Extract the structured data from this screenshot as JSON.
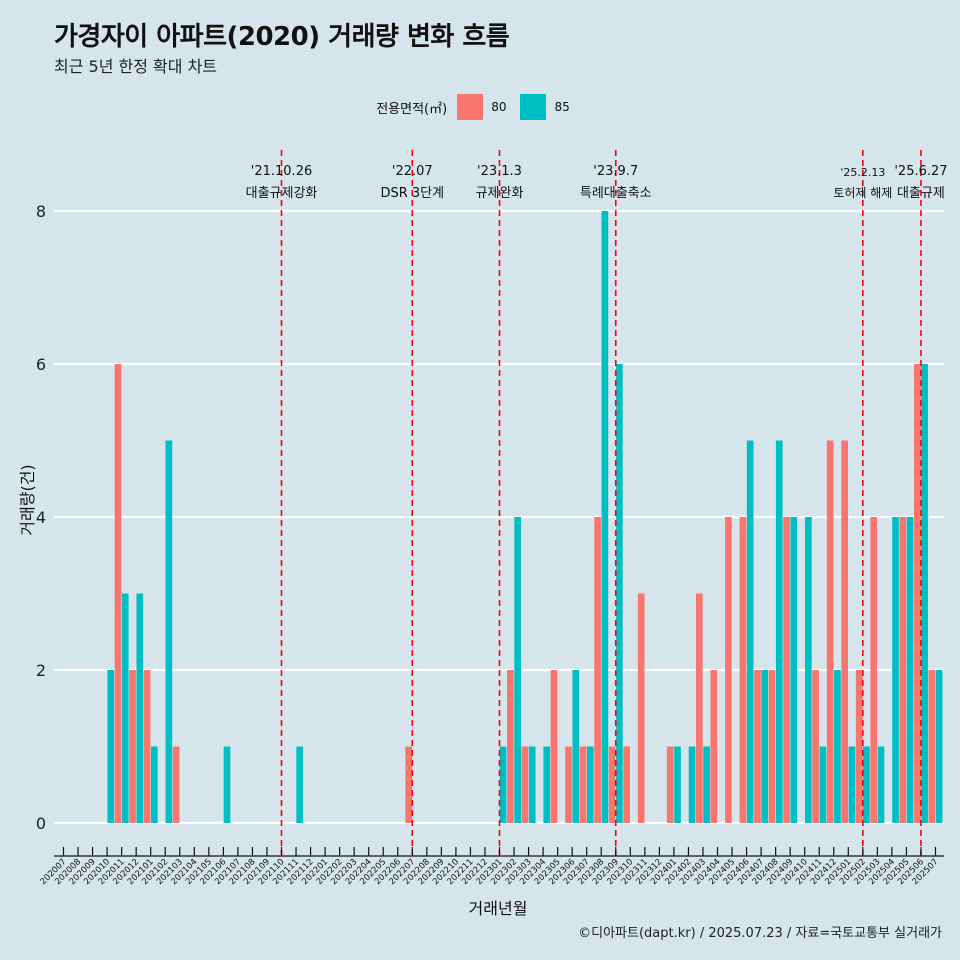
{
  "title": "가경자이 아파트(2020) 거래량 변화 흐름",
  "subtitle": "최근 5년 한정 확대 차트",
  "caption": "©디아파트(dapt.kr) / 2025.07.23 / 자료=국토교통부 실거래가",
  "legend": {
    "title": "전용면적(㎡)"
  },
  "colors": {
    "80": "#f8766d",
    "85": "#00bfc4",
    "event_line": "#ff0000",
    "background": "#d6e4ec"
  },
  "chart_data": {
    "type": "bar",
    "xlabel": "거래년월",
    "ylabel": "거래량(건)",
    "ylim": [
      0,
      8
    ],
    "yticks": [
      0,
      2,
      4,
      6,
      8
    ],
    "legend_placement": "top",
    "categories": [
      "202007",
      "202008",
      "202009",
      "202010",
      "202011",
      "202012",
      "202101",
      "202102",
      "202103",
      "202104",
      "202105",
      "202106",
      "202107",
      "202108",
      "202109",
      "202110",
      "202111",
      "202112",
      "202201",
      "202202",
      "202203",
      "202204",
      "202205",
      "202206",
      "202207",
      "202208",
      "202209",
      "202210",
      "202211",
      "202212",
      "202301",
      "202302",
      "202303",
      "202304",
      "202305",
      "202306",
      "202307",
      "202308",
      "202309",
      "202310",
      "202311",
      "202312",
      "202401",
      "202402",
      "202403",
      "202404",
      "202405",
      "202406",
      "202407",
      "202408",
      "202409",
      "202410",
      "202411",
      "202412",
      "202501",
      "202502",
      "202503",
      "202504",
      "202505",
      "202506",
      "202507"
    ],
    "series": [
      {
        "name": "80",
        "values": [
          0,
          0,
          0,
          0,
          6,
          2,
          2,
          0,
          1,
          0,
          0,
          0,
          0,
          0,
          0,
          0,
          0,
          0,
          0,
          0,
          0,
          0,
          0,
          0,
          1,
          0,
          0,
          0,
          0,
          0,
          0,
          2,
          1,
          0,
          2,
          1,
          1,
          4,
          1,
          1,
          3,
          0,
          1,
          0,
          3,
          2,
          4,
          4,
          2,
          2,
          4,
          0,
          2,
          5,
          5,
          2,
          4,
          0,
          4,
          6,
          2
        ]
      },
      {
        "name": "85",
        "values": [
          0,
          0,
          0,
          2,
          3,
          3,
          1,
          5,
          0,
          0,
          0,
          1,
          0,
          0,
          0,
          0,
          1,
          0,
          0,
          0,
          0,
          0,
          0,
          0,
          0,
          0,
          0,
          0,
          0,
          0,
          1,
          4,
          1,
          1,
          0,
          2,
          1,
          8,
          6,
          0,
          0,
          0,
          1,
          1,
          1,
          0,
          0,
          5,
          2,
          5,
          4,
          4,
          1,
          2,
          1,
          1,
          1,
          4,
          4,
          6,
          2
        ]
      }
    ],
    "events": [
      {
        "category": "202110",
        "date": "'21.10.26",
        "label": "대출규제강화"
      },
      {
        "category": "202207",
        "date": "'22.07",
        "label": "DSR 3단계"
      },
      {
        "category": "202301",
        "date": "'23.1.3",
        "label": "규제완화"
      },
      {
        "category": "202309",
        "date": "'23.9.7",
        "label": "특례대출축소"
      },
      {
        "category": "202502",
        "date": "'25.2.13",
        "label": "토허제 해제"
      },
      {
        "category": "202506",
        "date": "'25.6.27",
        "label": "대출규제"
      }
    ]
  }
}
